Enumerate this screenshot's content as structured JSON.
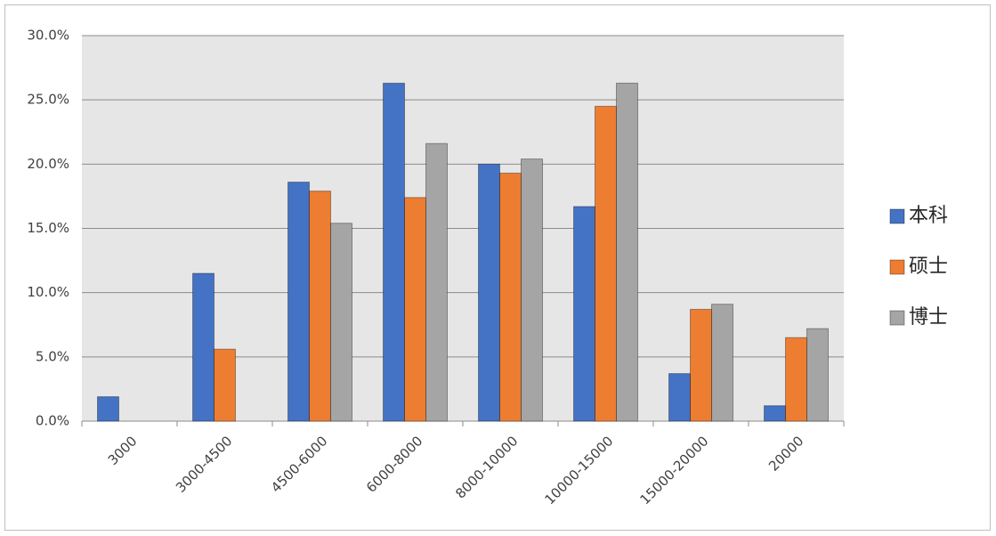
{
  "chart_data": {
    "type": "bar",
    "categories": [
      "3000",
      "3000-4500",
      "4500-6000",
      "6000-8000",
      "8000-10000",
      "10000-15000",
      "15000-20000",
      "20000"
    ],
    "series": [
      {
        "name": "本科",
        "color": "#4472c4",
        "values": [
          1.9,
          11.5,
          18.6,
          26.3,
          20.0,
          16.7,
          3.7,
          1.2
        ]
      },
      {
        "name": "硕士",
        "color": "#ed7d31",
        "values": [
          0,
          5.6,
          17.9,
          17.4,
          19.3,
          24.5,
          8.7,
          6.5
        ]
      },
      {
        "name": "博士",
        "color": "#a5a5a5",
        "values": [
          0,
          0,
          15.4,
          21.6,
          20.4,
          26.3,
          9.1,
          7.2
        ]
      }
    ],
    "ylim": [
      0,
      30
    ],
    "yticks": [
      {
        "value": 0,
        "label": "0.0%"
      },
      {
        "value": 5,
        "label": "5.0%"
      },
      {
        "value": 10,
        "label": "10.0%"
      },
      {
        "value": 15,
        "label": "15.0%"
      },
      {
        "value": 20,
        "label": "20.0%"
      },
      {
        "value": 25,
        "label": "25.0%"
      },
      {
        "value": 30,
        "label": "30.0%"
      }
    ],
    "grid": true,
    "legend": "right"
  }
}
